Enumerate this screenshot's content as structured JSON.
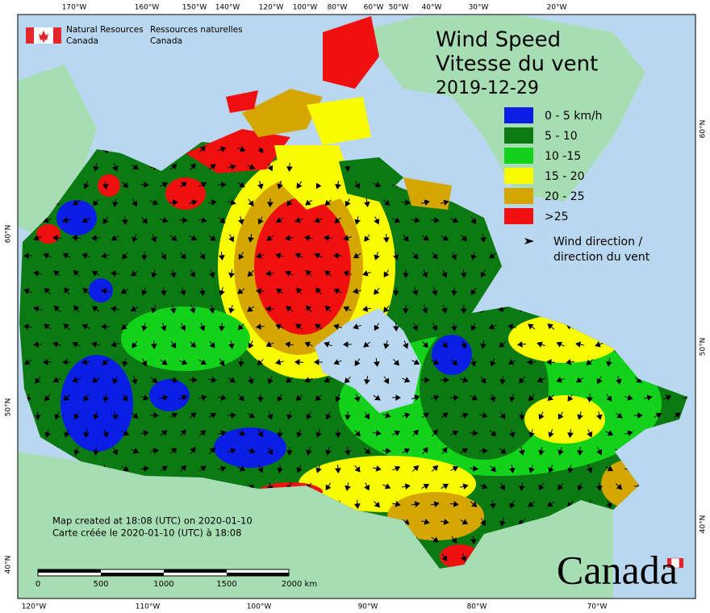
{
  "header": {
    "department_en": "Natural Resources",
    "country_en": "Canada",
    "department_fr": "Ressources naturelles",
    "country_fr": "Canada"
  },
  "title": {
    "en": "Wind Speed",
    "fr": "Vitesse du vent",
    "date": "2019-12-29"
  },
  "legend": {
    "items": [
      {
        "label": "0 - 5 km/h",
        "color": "#0a1ee6"
      },
      {
        "label": "5 - 10",
        "color": "#0b7a12"
      },
      {
        "label": "10 -15",
        "color": "#12d21a"
      },
      {
        "label": "15 - 20",
        "color": "#fafa00"
      },
      {
        "label": "20 - 25",
        "color": "#d6a600"
      },
      {
        "label": ">25",
        "color": "#f01010"
      }
    ],
    "arrow_en": "Wind direction /",
    "arrow_fr": "direction du vent"
  },
  "graticule": {
    "top": [
      "170°W",
      "160°W",
      "150°W",
      "140°W",
      "120°W",
      "100°W",
      "80°W",
      "60°W",
      "50°W",
      "40°W",
      "30°W",
      "20°W"
    ],
    "bottom": [
      "120°W",
      "110°W",
      "100°W",
      "90°W",
      "80°W",
      "70°W"
    ],
    "left": [
      "60°N",
      "50°N",
      "40°N"
    ],
    "right": [
      "60°N",
      "50°N",
      "40°N"
    ]
  },
  "footer": {
    "created_en": "Map created at 18:08 (UTC) on 2020-01-10",
    "created_fr": "Carte créée le 2020-01-10 (UTC) à 18:08"
  },
  "scale_bar": {
    "labels": [
      "0",
      "500",
      "1000",
      "1500",
      "2000 km"
    ]
  },
  "wordmark": "Canada"
}
